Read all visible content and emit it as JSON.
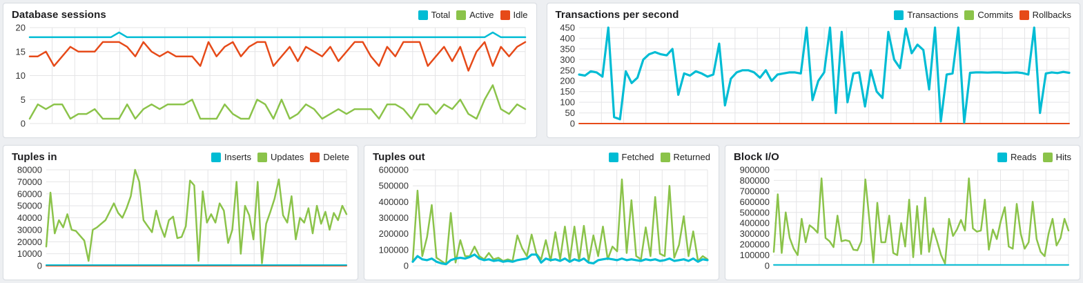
{
  "page": {
    "background_color": "#edeff2",
    "panel_background": "#ffffff",
    "gridline_color": "#e4e4e6",
    "tick_label_color": "#333333"
  },
  "palette": {
    "cyan": "#00BCD4",
    "green": "#8BC34A",
    "red": "#E64A19"
  },
  "chart_data": [
    {
      "type": "line",
      "title": "Database sessions",
      "xlabel": "",
      "ylabel": "",
      "ylim": [
        0,
        20
      ],
      "yticks": [
        0,
        5,
        10,
        15,
        20
      ],
      "grid": true,
      "legend_position": "top-right",
      "series": [
        {
          "name": "Total",
          "color": "#00BCD4",
          "values": [
            18,
            18,
            18,
            18,
            18,
            18,
            18,
            18,
            18,
            18,
            18,
            19,
            18,
            18,
            18,
            18,
            18,
            18,
            18,
            18,
            18,
            18,
            18,
            18,
            18,
            18,
            18,
            18,
            18,
            18,
            18,
            18,
            18,
            18,
            18,
            18,
            18,
            18,
            18,
            18,
            18,
            18,
            18,
            18,
            18,
            18,
            18,
            18,
            18,
            18,
            18,
            18,
            18,
            18,
            18,
            18,
            18,
            19,
            18,
            18,
            18,
            18
          ]
        },
        {
          "name": "Active",
          "color": "#8BC34A",
          "values": [
            1,
            4,
            3,
            4,
            4,
            1,
            2,
            2,
            3,
            1,
            1,
            1,
            4,
            1,
            3,
            4,
            3,
            4,
            4,
            4,
            5,
            1,
            1,
            1,
            4,
            2,
            1,
            1,
            5,
            4,
            1,
            5,
            1,
            2,
            4,
            3,
            1,
            2,
            3,
            2,
            3,
            3,
            3,
            1,
            4,
            4,
            3,
            1,
            4,
            4,
            2,
            4,
            3,
            5,
            2,
            1,
            5,
            8,
            3,
            2,
            4,
            3
          ]
        },
        {
          "name": "Idle",
          "color": "#E64A19",
          "values": [
            14,
            14,
            15,
            12,
            14,
            16,
            15,
            15,
            15,
            17,
            17,
            17,
            16,
            14,
            17,
            15,
            14,
            15,
            14,
            14,
            14,
            12,
            17,
            14,
            16,
            17,
            14,
            16,
            17,
            17,
            12,
            14,
            16,
            13,
            16,
            15,
            14,
            16,
            13,
            15,
            17,
            17,
            14,
            12,
            16,
            14,
            17,
            17,
            17,
            12,
            14,
            16,
            13,
            16,
            11,
            15,
            17,
            12,
            16,
            14,
            16,
            17
          ]
        }
      ]
    },
    {
      "type": "line",
      "title": "Transactions per second",
      "xlabel": "",
      "ylabel": "",
      "ylim": [
        0,
        450
      ],
      "yticks": [
        0,
        50,
        100,
        150,
        200,
        250,
        300,
        350,
        400,
        450
      ],
      "grid": true,
      "legend_position": "top-right",
      "draw_order": [
        1,
        2,
        0
      ],
      "series": [
        {
          "name": "Transactions",
          "color": "#00BCD4",
          "w": 3.2,
          "values": [
            230,
            225,
            245,
            240,
            220,
            450,
            30,
            20,
            245,
            190,
            215,
            300,
            325,
            335,
            325,
            320,
            350,
            135,
            235,
            225,
            245,
            235,
            220,
            230,
            375,
            85,
            210,
            240,
            250,
            250,
            240,
            215,
            250,
            200,
            230,
            235,
            240,
            240,
            235,
            450,
            110,
            200,
            240,
            450,
            50,
            430,
            100,
            235,
            240,
            80,
            250,
            150,
            120,
            430,
            300,
            260,
            445,
            330,
            370,
            345,
            160,
            450,
            10,
            230,
            235,
            450,
            5,
            238,
            240,
            240,
            239,
            240,
            240,
            238,
            239,
            240,
            237,
            230,
            450,
            50,
            235,
            240,
            237,
            242,
            238
          ]
        },
        {
          "name": "Commits",
          "color": "#8BC34A",
          "values_same_as": 0,
          "hidden_behind": "Transactions"
        },
        {
          "name": "Rollbacks",
          "color": "#E64A19",
          "w": 2,
          "flat": 0
        }
      ]
    },
    {
      "type": "line",
      "title": "Tuples in",
      "xlabel": "",
      "ylabel": "",
      "ylim": [
        0,
        80000
      ],
      "yticks": [
        0,
        10000,
        20000,
        30000,
        40000,
        50000,
        60000,
        70000,
        80000
      ],
      "grid": true,
      "legend_position": "top-right",
      "draw_order": [
        2,
        0,
        1
      ],
      "series": [
        {
          "name": "Inserts",
          "color": "#00BCD4",
          "w": 2,
          "flat": 600
        },
        {
          "name": "Updates",
          "color": "#8BC34A",
          "values": [
            16000,
            61000,
            27000,
            38000,
            32000,
            43000,
            30000,
            29000,
            25000,
            21000,
            4000,
            30000,
            32000,
            35000,
            38000,
            45000,
            52000,
            44000,
            40000,
            48000,
            58000,
            80000,
            70000,
            38000,
            33000,
            28000,
            46000,
            33000,
            24000,
            38000,
            41000,
            23000,
            24000,
            33000,
            71000,
            67000,
            4000,
            62000,
            36000,
            43000,
            36000,
            52000,
            46000,
            19000,
            30000,
            70000,
            10000,
            50000,
            42000,
            22000,
            70000,
            2000,
            35000,
            45000,
            56000,
            72000,
            42000,
            36000,
            58000,
            22000,
            40000,
            36000,
            48000,
            27000,
            50000,
            35000,
            45000,
            30000,
            44000,
            38000,
            50000,
            43000
          ]
        },
        {
          "name": "Delete",
          "color": "#E64A19",
          "w": 2,
          "flat": 0,
          "hidden_behind": "Inserts"
        }
      ]
    },
    {
      "type": "line",
      "title": "Tuples out",
      "xlabel": "",
      "ylabel": "",
      "ylim": [
        0,
        600000
      ],
      "yticks": [
        0,
        100000,
        200000,
        300000,
        400000,
        500000,
        600000
      ],
      "grid": true,
      "legend_position": "top-right",
      "draw_order": [
        1,
        0
      ],
      "series": [
        {
          "name": "Fetched",
          "color": "#00BCD4",
          "w": 3.2,
          "values": [
            25000,
            60000,
            40000,
            35000,
            45000,
            25000,
            15000,
            10000,
            35000,
            45000,
            50000,
            45000,
            55000,
            70000,
            45000,
            35000,
            40000,
            30000,
            35000,
            25000,
            30000,
            25000,
            35000,
            40000,
            45000,
            70000,
            70000,
            20000,
            45000,
            35000,
            40000,
            30000,
            45000,
            25000,
            40000,
            30000,
            45000,
            20000,
            15000,
            35000,
            40000,
            45000,
            40000,
            35000,
            45000,
            35000,
            40000,
            35000,
            30000,
            40000,
            35000,
            40000,
            30000,
            35000,
            45000,
            30000,
            35000,
            40000,
            30000,
            45000,
            25000,
            40000,
            35000
          ]
        },
        {
          "name": "Returned",
          "color": "#8BC34A",
          "values": [
            30000,
            470000,
            60000,
            180000,
            380000,
            50000,
            30000,
            10000,
            330000,
            20000,
            160000,
            60000,
            60000,
            120000,
            60000,
            40000,
            80000,
            40000,
            50000,
            30000,
            40000,
            30000,
            190000,
            110000,
            60000,
            195000,
            75000,
            40000,
            160000,
            30000,
            210000,
            40000,
            245000,
            30000,
            245000,
            30000,
            250000,
            30000,
            190000,
            60000,
            245000,
            40000,
            120000,
            90000,
            540000,
            80000,
            410000,
            60000,
            40000,
            240000,
            60000,
            430000,
            75000,
            60000,
            500000,
            50000,
            130000,
            310000,
            60000,
            215000,
            30000,
            60000,
            40000
          ]
        }
      ]
    },
    {
      "type": "line",
      "title": "Block I/O",
      "xlabel": "",
      "ylabel": "",
      "ylim": [
        0,
        900000
      ],
      "yticks": [
        0,
        100000,
        200000,
        300000,
        400000,
        500000,
        600000,
        700000,
        800000,
        900000
      ],
      "grid": true,
      "legend_position": "top-right",
      "draw_order": [
        1,
        0
      ],
      "series": [
        {
          "name": "Reads",
          "color": "#00BCD4",
          "w": 2,
          "flat": 8000
        },
        {
          "name": "Hits",
          "color": "#8BC34A",
          "values": [
            130000,
            670000,
            120000,
            500000,
            260000,
            160000,
            100000,
            440000,
            220000,
            380000,
            350000,
            310000,
            820000,
            260000,
            230000,
            175000,
            470000,
            230000,
            240000,
            230000,
            150000,
            145000,
            230000,
            810000,
            430000,
            30000,
            590000,
            220000,
            220000,
            470000,
            120000,
            100000,
            400000,
            180000,
            620000,
            80000,
            560000,
            110000,
            640000,
            130000,
            350000,
            230000,
            100000,
            20000,
            440000,
            280000,
            340000,
            430000,
            330000,
            820000,
            350000,
            320000,
            330000,
            620000,
            150000,
            340000,
            250000,
            420000,
            550000,
            180000,
            160000,
            580000,
            300000,
            160000,
            220000,
            600000,
            250000,
            130000,
            90000,
            300000,
            440000,
            190000,
            260000,
            440000,
            330000
          ]
        }
      ]
    }
  ]
}
